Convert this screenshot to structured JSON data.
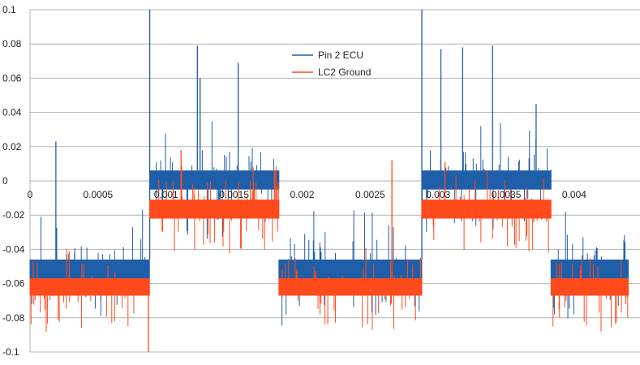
{
  "chart_data": {
    "type": "line",
    "title": "",
    "xlabel": "",
    "ylabel": "",
    "xlim": [
      0,
      0.0044
    ],
    "ylim": [
      -0.1,
      0.1
    ],
    "x_ticks": [
      0,
      0.0005,
      0.001,
      0.0015,
      0.002,
      0.0025,
      0.003,
      0.0035,
      0.004
    ],
    "x_tick_labels": [
      "0",
      "0.0005",
      "0.001",
      "0.0015",
      "0.002",
      "0.0025",
      "0.003",
      "0.0035",
      "0.004"
    ],
    "y_ticks": [
      0.1,
      0.08,
      0.06,
      0.04,
      0.02,
      0,
      -0.02,
      -0.04,
      -0.06,
      -0.08,
      -0.1
    ],
    "y_tick_labels": [
      "0.1",
      "0.08",
      "0.06",
      "0.04",
      "0.02",
      "0",
      "-0.02",
      "-0.04",
      "-0.06",
      "-0.08",
      "-0.1"
    ],
    "grid": true,
    "legend_position": "top-center",
    "series": [
      {
        "name": "Pin 2 ECU",
        "color": "#1f5ea8",
        "segments": [
          {
            "x_start": 0,
            "x_end": 0.00088,
            "low": -0.057,
            "high": -0.046
          },
          {
            "x_start": 0.00088,
            "x_end": 0.00183,
            "low": -0.005,
            "high": 0.006
          },
          {
            "x_start": 0.00183,
            "x_end": 0.00288,
            "low": -0.057,
            "high": -0.046
          },
          {
            "x_start": 0.00288,
            "x_end": 0.00383,
            "low": -0.005,
            "high": 0.006
          },
          {
            "x_start": 0.00383,
            "x_end": 0.0044,
            "low": -0.057,
            "high": -0.046
          }
        ],
        "spikes": [
          {
            "x": 0.00088,
            "y": 0.1
          },
          {
            "x": 0.00288,
            "y": 0.1
          },
          {
            "x": 0.00123,
            "y": 0.079
          },
          {
            "x": 0.0034,
            "y": 0.079
          },
          {
            "x": 0.00318,
            "y": 0.078
          },
          {
            "x": 0.00125,
            "y": 0.06
          },
          {
            "x": 0.00153,
            "y": 0.069
          },
          {
            "x": 0.00302,
            "y": 0.077
          },
          {
            "x": 0.00372,
            "y": 0.045
          },
          {
            "x": 0.00019,
            "y": 0.023
          }
        ]
      },
      {
        "name": "LC2 Ground",
        "color": "#ff4a1c",
        "segments": [
          {
            "x_start": 0,
            "x_end": 0.00088,
            "low": -0.067,
            "high": -0.057
          },
          {
            "x_start": 0.00088,
            "x_end": 0.00183,
            "low": -0.022,
            "high": -0.011
          },
          {
            "x_start": 0.00183,
            "x_end": 0.00288,
            "low": -0.067,
            "high": -0.057
          },
          {
            "x_start": 0.00288,
            "x_end": 0.00383,
            "low": -0.022,
            "high": -0.011
          },
          {
            "x_start": 0.00383,
            "x_end": 0.0044,
            "low": -0.067,
            "high": -0.057
          }
        ],
        "spikes": [
          {
            "x": 0.00266,
            "y": 0.012
          },
          {
            "x": 0.00305,
            "y": 0.011
          },
          {
            "x": 0.00111,
            "y": 0.018
          },
          {
            "x": 0.00287,
            "y": -0.045
          },
          {
            "x": 0.00087,
            "y": -0.1
          }
        ]
      }
    ]
  }
}
